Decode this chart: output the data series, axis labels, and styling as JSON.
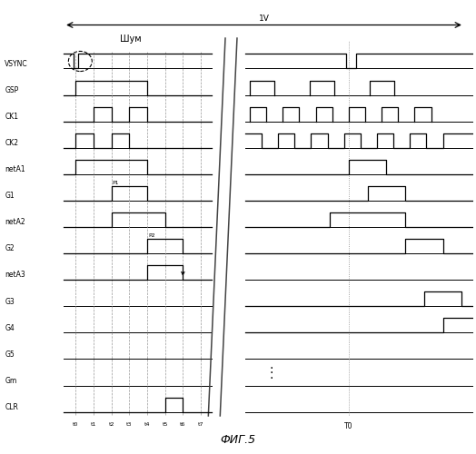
{
  "fig_width": 5.24,
  "fig_height": 5.0,
  "dpi": 100,
  "bg_color": "#ffffff",
  "signal_color": "#000000",
  "label_color": "#000000",
  "signals": [
    "VSYNC",
    "GSP",
    "CK1",
    "CK2",
    "netA1",
    "G1",
    "netA2",
    "G2",
    "netA3",
    "G3",
    "G4",
    "G5",
    "Gm",
    "CLR"
  ],
  "t_labels": [
    "t0",
    "t1",
    "t2",
    "t3",
    "t4",
    "t5",
    "t6",
    "t7"
  ],
  "fig_title": "ФИГ.5",
  "noise_label": "Шум",
  "period_label": "1V",
  "T0_label": "T0"
}
